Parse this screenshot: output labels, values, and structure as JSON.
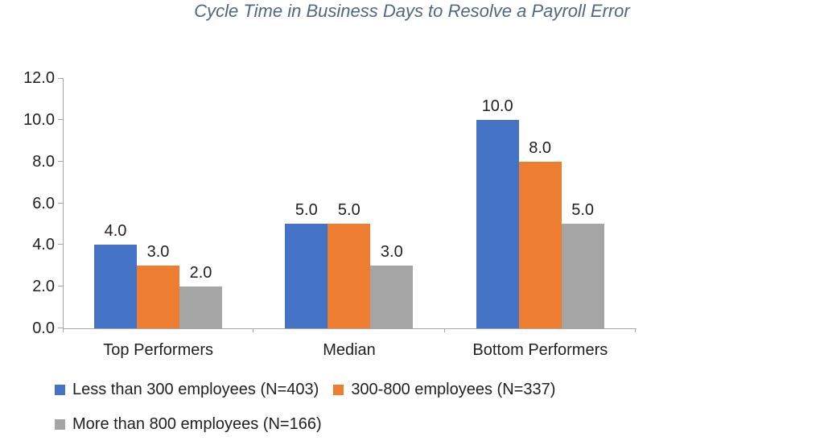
{
  "chart_data": {
    "type": "bar",
    "title": "Cycle Time in Business Days to Resolve a Payroll Error",
    "categories": [
      "Top Performers",
      "Median",
      "Bottom Performers"
    ],
    "series": [
      {
        "name": "Less than 300 employees (N=403)",
        "color": "#4472C4",
        "values": [
          4.0,
          5.0,
          10.0
        ]
      },
      {
        "name": "300-800 employees (N=337)",
        "color": "#ED7D31",
        "values": [
          3.0,
          5.0,
          8.0
        ]
      },
      {
        "name": "More than 800 employees (N=166)",
        "color": "#A5A5A5",
        "values": [
          2.0,
          3.0,
          5.0
        ]
      }
    ],
    "ylim": [
      0,
      12
    ],
    "yticks": [
      "0.0",
      "2.0",
      "4.0",
      "6.0",
      "8.0",
      "10.0",
      "12.0"
    ],
    "grid": false,
    "data_labels": true,
    "value_format_decimals": 1,
    "legend_position": "bottom-left",
    "legend_rows": [
      [
        0,
        1
      ],
      [
        2
      ]
    ]
  },
  "colors": {
    "title": "#4E6881",
    "axis": "#A6A6A6",
    "text": "#1F1F1F",
    "background": "#FFFFFF"
  }
}
